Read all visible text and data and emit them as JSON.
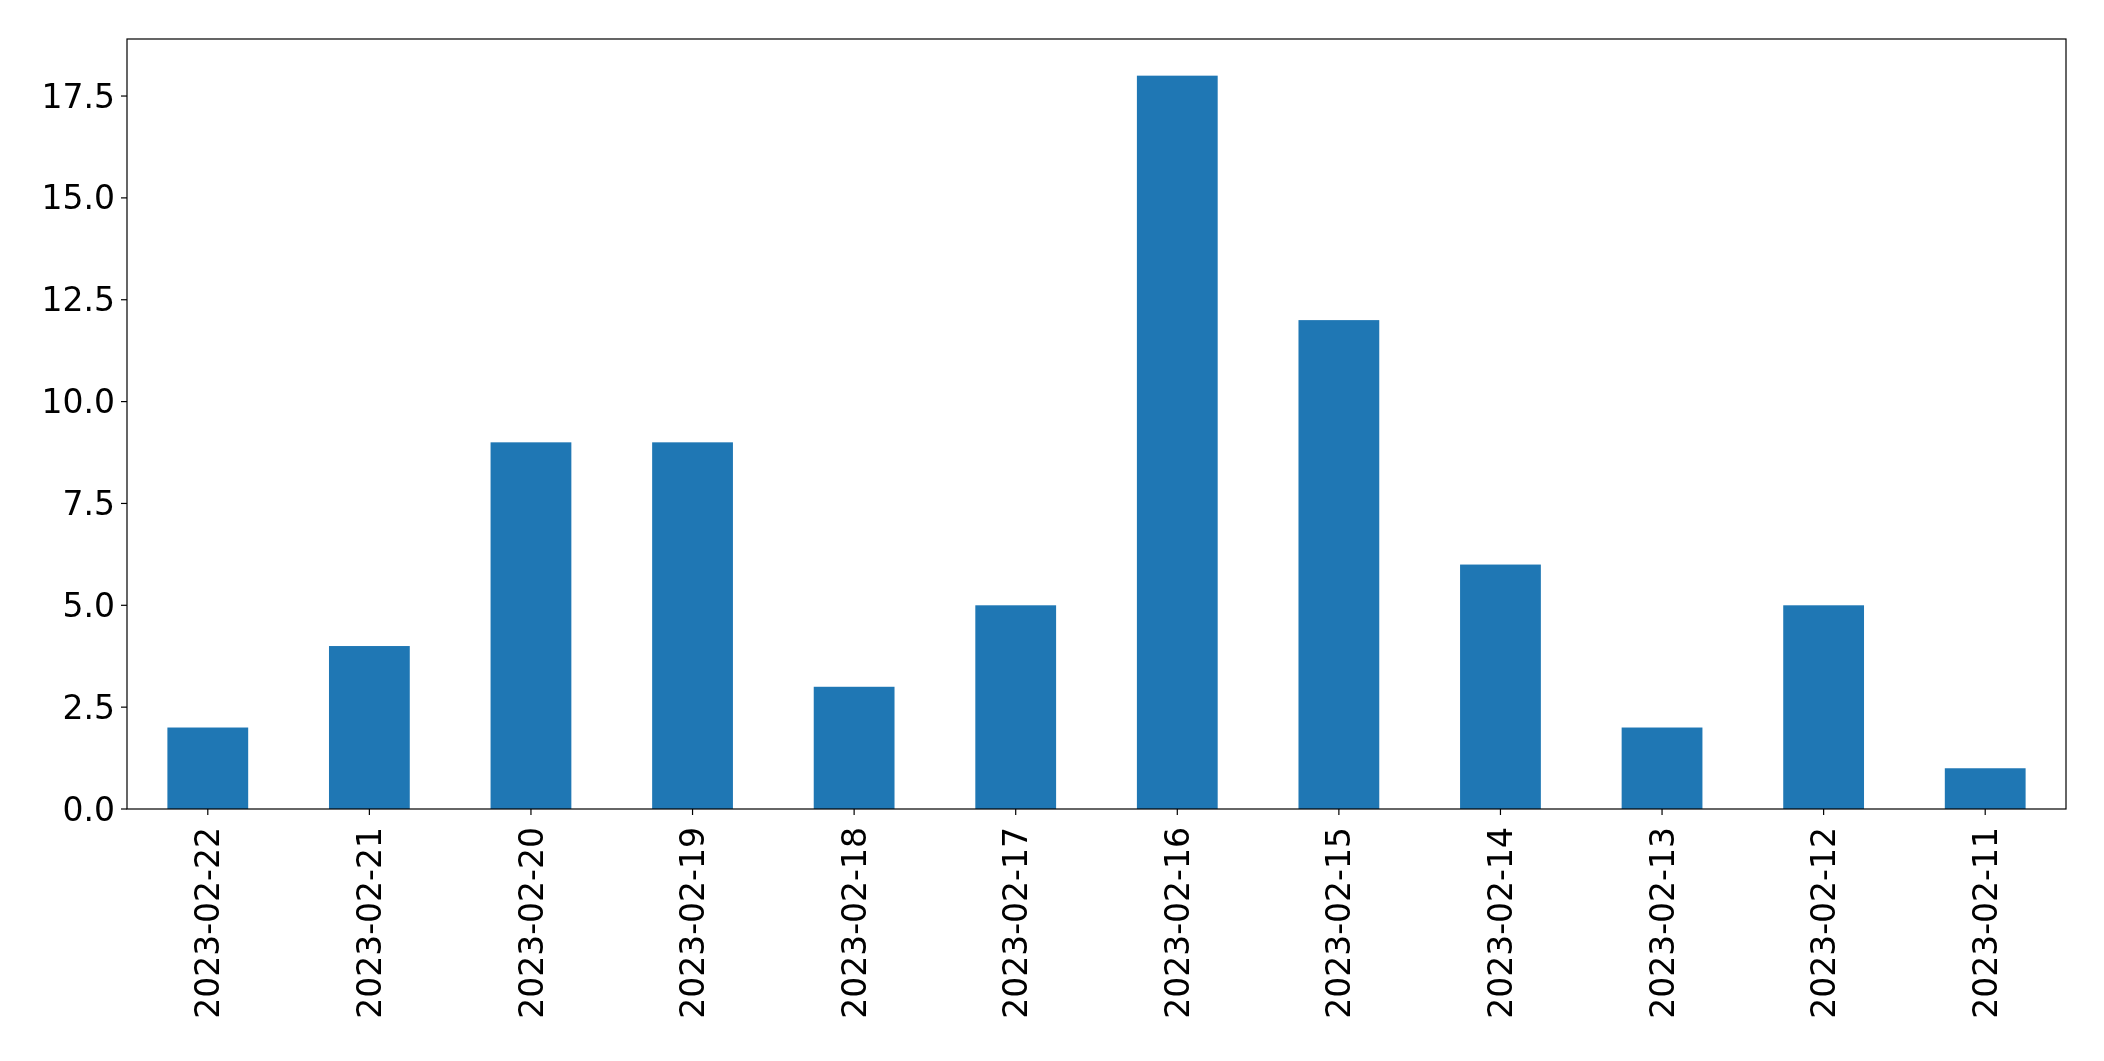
{
  "chart_data": {
    "type": "bar",
    "categories": [
      "2023-02-22",
      "2023-02-21",
      "2023-02-20",
      "2023-02-19",
      "2023-02-18",
      "2023-02-17",
      "2023-02-16",
      "2023-02-15",
      "2023-02-14",
      "2023-02-13",
      "2023-02-12",
      "2023-02-11"
    ],
    "values": [
      2,
      4,
      9,
      9,
      3,
      5,
      18,
      12,
      6,
      2,
      5,
      1
    ],
    "color": "#1f77b4",
    "ylim": [
      0,
      18.9
    ],
    "yticks": [
      {
        "value": 0,
        "label": "0.0"
      },
      {
        "value": 2.5,
        "label": "2.5"
      },
      {
        "value": 5,
        "label": "5.0"
      },
      {
        "value": 7.5,
        "label": "7.5"
      },
      {
        "value": 10,
        "label": "10.0"
      },
      {
        "value": 12.5,
        "label": "12.5"
      },
      {
        "value": 15,
        "label": "15.0"
      },
      {
        "value": 17.5,
        "label": "17.5"
      }
    ],
    "grid": false
  }
}
